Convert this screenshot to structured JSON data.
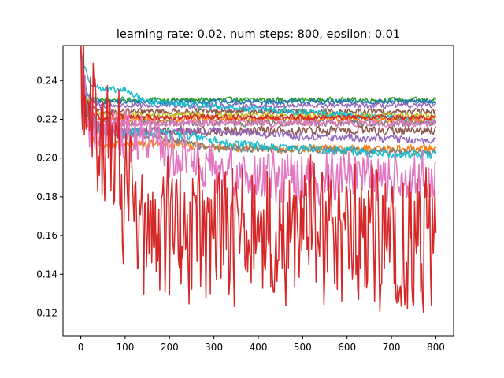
{
  "chart_data": {
    "type": "line",
    "title": "learning rate: 0.02, num steps: 800, epsilon: 0.01",
    "xlabel": "",
    "ylabel": "",
    "xlim": [
      -40,
      840
    ],
    "ylim": [
      0.108,
      0.258
    ],
    "grid": false,
    "x_ticks": [
      0,
      100,
      200,
      300,
      400,
      500,
      600,
      700,
      800
    ],
    "y_ticks": [
      0.12,
      0.14,
      0.16,
      0.18,
      0.2,
      0.22,
      0.24
    ],
    "x_tick_labels": [
      "0",
      "100",
      "200",
      "300",
      "400",
      "500",
      "600",
      "700",
      "800"
    ],
    "y_tick_labels": [
      "0.12",
      "0.14",
      "0.16",
      "0.18",
      "0.20",
      "0.22",
      "0.24"
    ],
    "num_steps": 800,
    "series": [
      {
        "color": "#2ca02c",
        "start": 0.256,
        "final": 0.23,
        "decay_steps": 30,
        "noise": 0.0008,
        "plateau": []
      },
      {
        "color": "#1f77b4",
        "start": 0.256,
        "final": 0.229,
        "decay_steps": 35,
        "noise": 0.0008,
        "plateau": []
      },
      {
        "color": "#9467bd",
        "start": 0.256,
        "final": 0.227,
        "decay_steps": 40,
        "noise": 0.0008,
        "plateau": []
      },
      {
        "color": "#8c564b",
        "start": 0.256,
        "final": 0.224,
        "decay_steps": 35,
        "noise": 0.0009,
        "plateau": []
      },
      {
        "color": "#bcbd22",
        "start": 0.256,
        "final": 0.222,
        "decay_steps": 45,
        "noise": 0.001,
        "plateau": []
      },
      {
        "color": "#17becf",
        "start": 0.256,
        "final": 0.219,
        "decay_steps": 60,
        "noise": 0.001,
        "plateau": [
          [
            100,
            0.235
          ],
          [
            150,
            0.229
          ]
        ]
      },
      {
        "color": "#ff7f0e",
        "start": 0.256,
        "final": 0.22,
        "decay_steps": 40,
        "noise": 0.001,
        "plateau": []
      },
      {
        "color": "#d62728",
        "start": 0.256,
        "final": 0.221,
        "decay_steps": 40,
        "noise": 0.0009,
        "plateau": []
      },
      {
        "color": "#7f7f7f",
        "start": 0.256,
        "final": 0.218,
        "decay_steps": 35,
        "noise": 0.001,
        "plateau": []
      },
      {
        "color": "#e377c2",
        "start": 0.256,
        "final": 0.218,
        "decay_steps": 40,
        "noise": 0.001,
        "plateau": []
      },
      {
        "color": "#8c564b",
        "start": 0.256,
        "final": 0.214,
        "decay_steps": 50,
        "noise": 0.0014,
        "plateau": []
      },
      {
        "color": "#9467bd",
        "start": 0.256,
        "final": 0.209,
        "decay_steps": 50,
        "noise": 0.0012,
        "plateau": [
          [
            300,
            0.214
          ],
          [
            500,
            0.211
          ]
        ]
      },
      {
        "color": "#ff7f0e",
        "start": 0.256,
        "final": 0.205,
        "decay_steps": 40,
        "noise": 0.0012,
        "plateau": [
          [
            200,
            0.207
          ],
          [
            400,
            0.205
          ]
        ]
      },
      {
        "color": "#7f7f7f",
        "start": 0.256,
        "final": 0.203,
        "decay_steps": 45,
        "noise": 0.0012,
        "plateau": [
          [
            150,
            0.212
          ],
          [
            300,
            0.205
          ]
        ]
      },
      {
        "color": "#17becf",
        "start": 0.256,
        "final": 0.201,
        "decay_steps": 60,
        "noise": 0.0013,
        "plateau": [
          [
            200,
            0.213
          ],
          [
            350,
            0.207
          ]
        ]
      },
      {
        "color": "#e377c2",
        "start": 0.256,
        "final": 0.19,
        "decay_steps": 40,
        "noise": 0.008,
        "plateau": [
          [
            100,
            0.212
          ],
          [
            250,
            0.2
          ],
          [
            330,
            0.19
          ]
        ]
      },
      {
        "color": "#d62728",
        "start": 0.256,
        "final": 0.158,
        "decay_steps": 90,
        "noise": 0.022,
        "plateau": [
          [
            60,
            0.205
          ],
          [
            100,
            0.175
          ],
          [
            130,
            0.163
          ]
        ]
      }
    ]
  }
}
